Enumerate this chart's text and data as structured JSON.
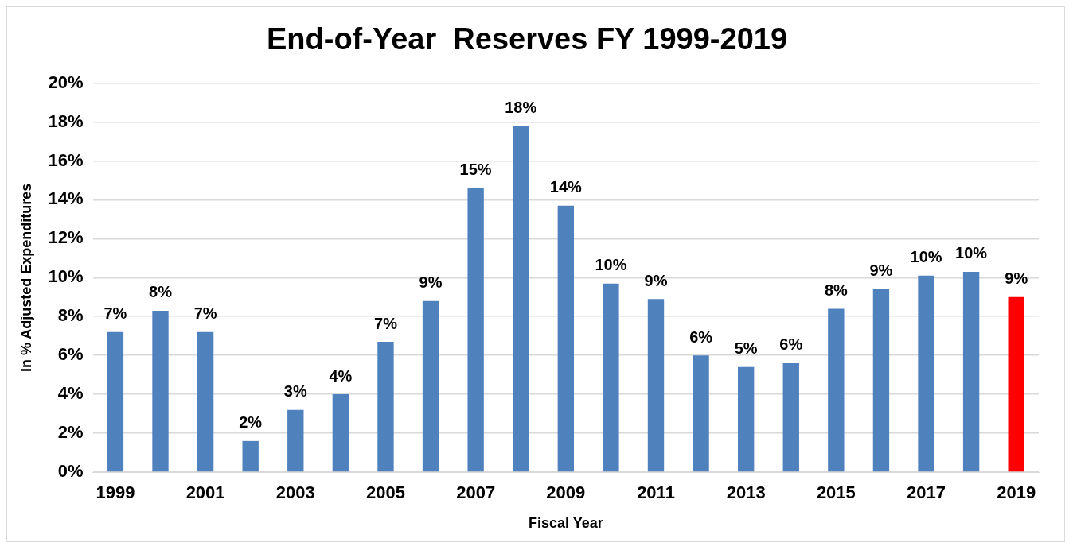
{
  "chart_data": {
    "type": "bar",
    "title": "End-of-Year  Reserves FY 1999-2019",
    "xlabel": "Fiscal Year",
    "ylabel": "In % Adjusted Expenditures",
    "categories": [
      "1999",
      null,
      "2001",
      null,
      "2003",
      null,
      "2005",
      null,
      "2007",
      null,
      "2009",
      null,
      "2011",
      null,
      "2013",
      null,
      "2015",
      null,
      "2017",
      null,
      "2019"
    ],
    "values": [
      7.2,
      8.3,
      7.2,
      1.6,
      3.2,
      4.0,
      6.7,
      8.8,
      14.6,
      17.8,
      13.7,
      9.7,
      8.9,
      6.0,
      5.4,
      5.6,
      8.4,
      9.4,
      10.1,
      10.3,
      9.0
    ],
    "colors": [
      "#4f81bd",
      "#4f81bd",
      "#4f81bd",
      "#4f81bd",
      "#4f81bd",
      "#4f81bd",
      "#4f81bd",
      "#4f81bd",
      "#4f81bd",
      "#4f81bd",
      "#4f81bd",
      "#4f81bd",
      "#4f81bd",
      "#4f81bd",
      "#4f81bd",
      "#4f81bd",
      "#4f81bd",
      "#4f81bd",
      "#4f81bd",
      "#4f81bd",
      "#ff0000"
    ],
    "value_labels": [
      "7%",
      "8%",
      "7%",
      "2%",
      "3%",
      "4%",
      "7%",
      "9%",
      "15%",
      "18%",
      "14%",
      "10%",
      "9%",
      "6%",
      "5%",
      "6%",
      "8%",
      "9%",
      "10%",
      "10%",
      "9%"
    ],
    "ylim": [
      0,
      20
    ],
    "yticks": [
      {
        "value": 0,
        "label": "0%"
      },
      {
        "value": 2,
        "label": "2%"
      },
      {
        "value": 4,
        "label": "4%"
      },
      {
        "value": 6,
        "label": "6%"
      },
      {
        "value": 8,
        "label": "8%"
      },
      {
        "value": 10,
        "label": "10%"
      },
      {
        "value": 12,
        "label": "12%"
      },
      {
        "value": 14,
        "label": "14%"
      },
      {
        "value": 16,
        "label": "16%"
      },
      {
        "value": 18,
        "label": "18%"
      },
      {
        "value": 20,
        "label": "20%"
      }
    ],
    "grid": "y",
    "legend": false
  }
}
